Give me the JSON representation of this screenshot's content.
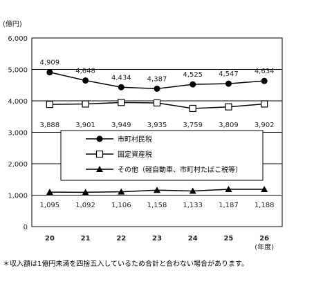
{
  "chart_data": {
    "type": "line",
    "ylabel": "(億円)",
    "xlabel": "(年度)",
    "categories": [
      "20",
      "21",
      "22",
      "23",
      "24",
      "25",
      "26"
    ],
    "ylim": [
      0,
      6000
    ],
    "yticks": [
      0,
      1000,
      2000,
      3000,
      4000,
      5000,
      6000
    ],
    "ytick_labels": [
      "0",
      "1,000",
      "2,000",
      "3,000",
      "4,000",
      "5,000",
      "6,000"
    ],
    "grid": true,
    "legend_position": "center",
    "series": [
      {
        "name": "市町村民税",
        "marker": "filled-circle",
        "values": [
          4909,
          4648,
          4434,
          4387,
          4525,
          4547,
          4634
        ],
        "labels": [
          "4,909",
          "4,648",
          "4,434",
          "4,387",
          "4,525",
          "4,547",
          "4,634"
        ],
        "label_side": "above"
      },
      {
        "name": "固定資産税",
        "marker": "open-square",
        "values": [
          3888,
          3901,
          3949,
          3935,
          3759,
          3809,
          3902
        ],
        "labels": [
          "3,888",
          "3,901",
          "3,949",
          "3,935",
          "3,759",
          "3,809",
          "3,902"
        ],
        "label_side": "below"
      },
      {
        "name": "その他（軽自動車、市町村たばこ税等）",
        "marker": "filled-triangle",
        "values": [
          1095,
          1092,
          1106,
          1158,
          1133,
          1187,
          1188
        ],
        "labels": [
          "1,095",
          "1,092",
          "1,106",
          "1,158",
          "1,133",
          "1,187",
          "1,188"
        ],
        "label_side": "below"
      }
    ]
  },
  "footnote": "＊収入額は1億円未満を四捨五入しているため合計と合わない場合があります。"
}
